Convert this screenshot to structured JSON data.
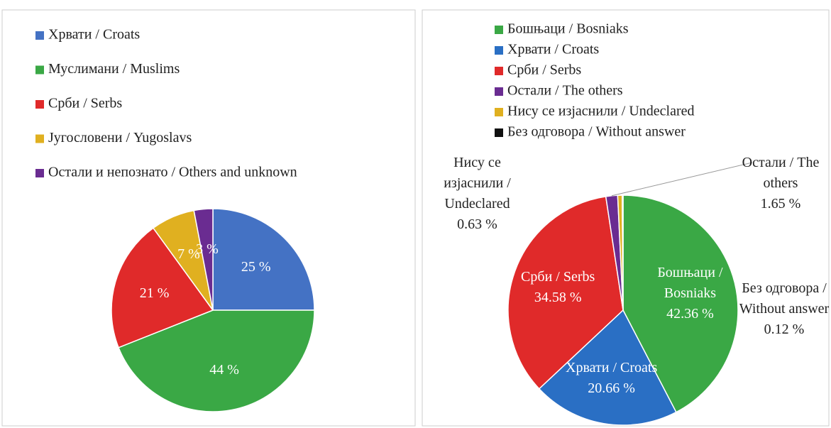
{
  "chart_data": [
    {
      "type": "pie",
      "categories": [
        "Хрвати / Croats",
        "Муслимани  / Muslims",
        "Срби / Serbs",
        "Југословени / Yugoslavs",
        "Остали и непознато / Others and unknown"
      ],
      "values": [
        25,
        44,
        21,
        7,
        3
      ],
      "value_labels": [
        "25 %",
        "44 %",
        "21 %",
        "7 %",
        "3 %"
      ],
      "colors": [
        "#4472c4",
        "#3aa845",
        "#e02a2a",
        "#e0b020",
        "#6a2c91"
      ],
      "legend": "top"
    },
    {
      "type": "pie",
      "categories": [
        "Бошњаци / Bosniaks",
        "Хрвати / Croats",
        "Срби / Serbs",
        "Остали / The others",
        "Нису се изјаснили / Undeclared",
        "Без одговора / Without answer"
      ],
      "values": [
        42.36,
        20.66,
        34.58,
        1.65,
        0.63,
        0.12
      ],
      "value_labels": [
        "42.36 %",
        "20.66 %",
        "34.58 %",
        "1.65 %",
        "0.63 %",
        "0.12 %"
      ],
      "colors": [
        "#3aa845",
        "#2a6fc4",
        "#e02a2a",
        "#6a2c91",
        "#e0b020",
        "#111111"
      ],
      "legend": "top"
    }
  ]
}
